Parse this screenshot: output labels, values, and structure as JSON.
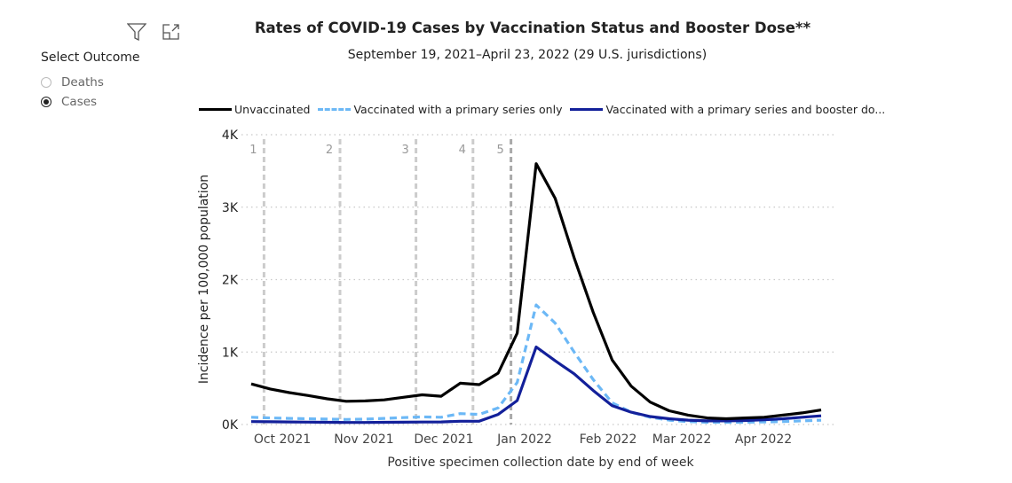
{
  "toolbar": {
    "icons": [
      "filter-icon",
      "focus-mode-icon"
    ]
  },
  "filter": {
    "title": "Select Outcome",
    "options": [
      {
        "label": "Deaths",
        "selected": false
      },
      {
        "label": "Cases",
        "selected": true
      }
    ]
  },
  "chart_data": {
    "type": "line",
    "title": "Rates of COVID-19 Cases by Vaccination Status and Booster Dose**",
    "subtitle": "September 19, 2021–April 23, 2022 (29 U.S. jurisdictions)",
    "xlabel": "Positive specimen collection date by end of week",
    "ylabel": "Incidence per 100,000 population",
    "ylim": [
      0,
      4000
    ],
    "yticks": [
      {
        "v": 0,
        "label": "0K"
      },
      {
        "v": 1000,
        "label": "1K"
      },
      {
        "v": 2000,
        "label": "2K"
      },
      {
        "v": 3000,
        "label": "3K"
      },
      {
        "v": 4000,
        "label": "4K"
      }
    ],
    "xticks": [
      "Oct 2021",
      "Nov 2021",
      "Dec 2021",
      "Jan 2022",
      "Feb 2022",
      "Mar 2022",
      "Apr 2022"
    ],
    "grid": true,
    "legend_position": "top",
    "x": [
      "2021-09-25",
      "2021-10-02",
      "2021-10-09",
      "2021-10-16",
      "2021-10-23",
      "2021-10-30",
      "2021-11-06",
      "2021-11-13",
      "2021-11-20",
      "2021-11-27",
      "2021-12-04",
      "2021-12-11",
      "2021-12-18",
      "2021-12-25",
      "2022-01-01",
      "2022-01-08",
      "2022-01-15",
      "2022-01-22",
      "2022-01-29",
      "2022-02-05",
      "2022-02-12",
      "2022-02-19",
      "2022-02-26",
      "2022-03-05",
      "2022-03-12",
      "2022-03-19",
      "2022-03-26",
      "2022-04-02",
      "2022-04-09",
      "2022-04-16",
      "2022-04-23"
    ],
    "series": [
      {
        "name": "Unvaccinated",
        "color": "#000000",
        "dash": false,
        "values": [
          560,
          490,
          440,
          400,
          355,
          320,
          325,
          340,
          375,
          410,
          390,
          570,
          550,
          710,
          1260,
          3600,
          3120,
          2300,
          1550,
          890,
          530,
          310,
          190,
          130,
          90,
          80,
          90,
          100,
          130,
          160,
          200
        ]
      },
      {
        "name": "Vaccinated with a primary series only",
        "color": "#6cb8f6",
        "dash": true,
        "values": [
          100,
          90,
          85,
          80,
          75,
          70,
          75,
          85,
          95,
          105,
          100,
          150,
          140,
          230,
          580,
          1650,
          1400,
          1000,
          620,
          300,
          170,
          100,
          60,
          40,
          30,
          30,
          30,
          35,
          40,
          50,
          60
        ]
      },
      {
        "name": "Vaccinated with a primary series and booster do...",
        "color": "#13209a",
        "dash": false,
        "values": [
          40,
          38,
          35,
          33,
          30,
          28,
          28,
          30,
          32,
          34,
          35,
          45,
          45,
          140,
          330,
          1070,
          880,
          700,
          470,
          260,
          170,
          110,
          80,
          60,
          50,
          50,
          55,
          65,
          80,
          100,
          120
        ]
      }
    ],
    "annotations": [
      {
        "label": "1",
        "date": "2021-10-02"
      },
      {
        "label": "2",
        "date": "2021-10-30"
      },
      {
        "label": "3",
        "date": "2021-11-27"
      },
      {
        "label": "4",
        "date": "2021-12-18"
      },
      {
        "label": "5",
        "date": "2022-01-01"
      }
    ]
  }
}
